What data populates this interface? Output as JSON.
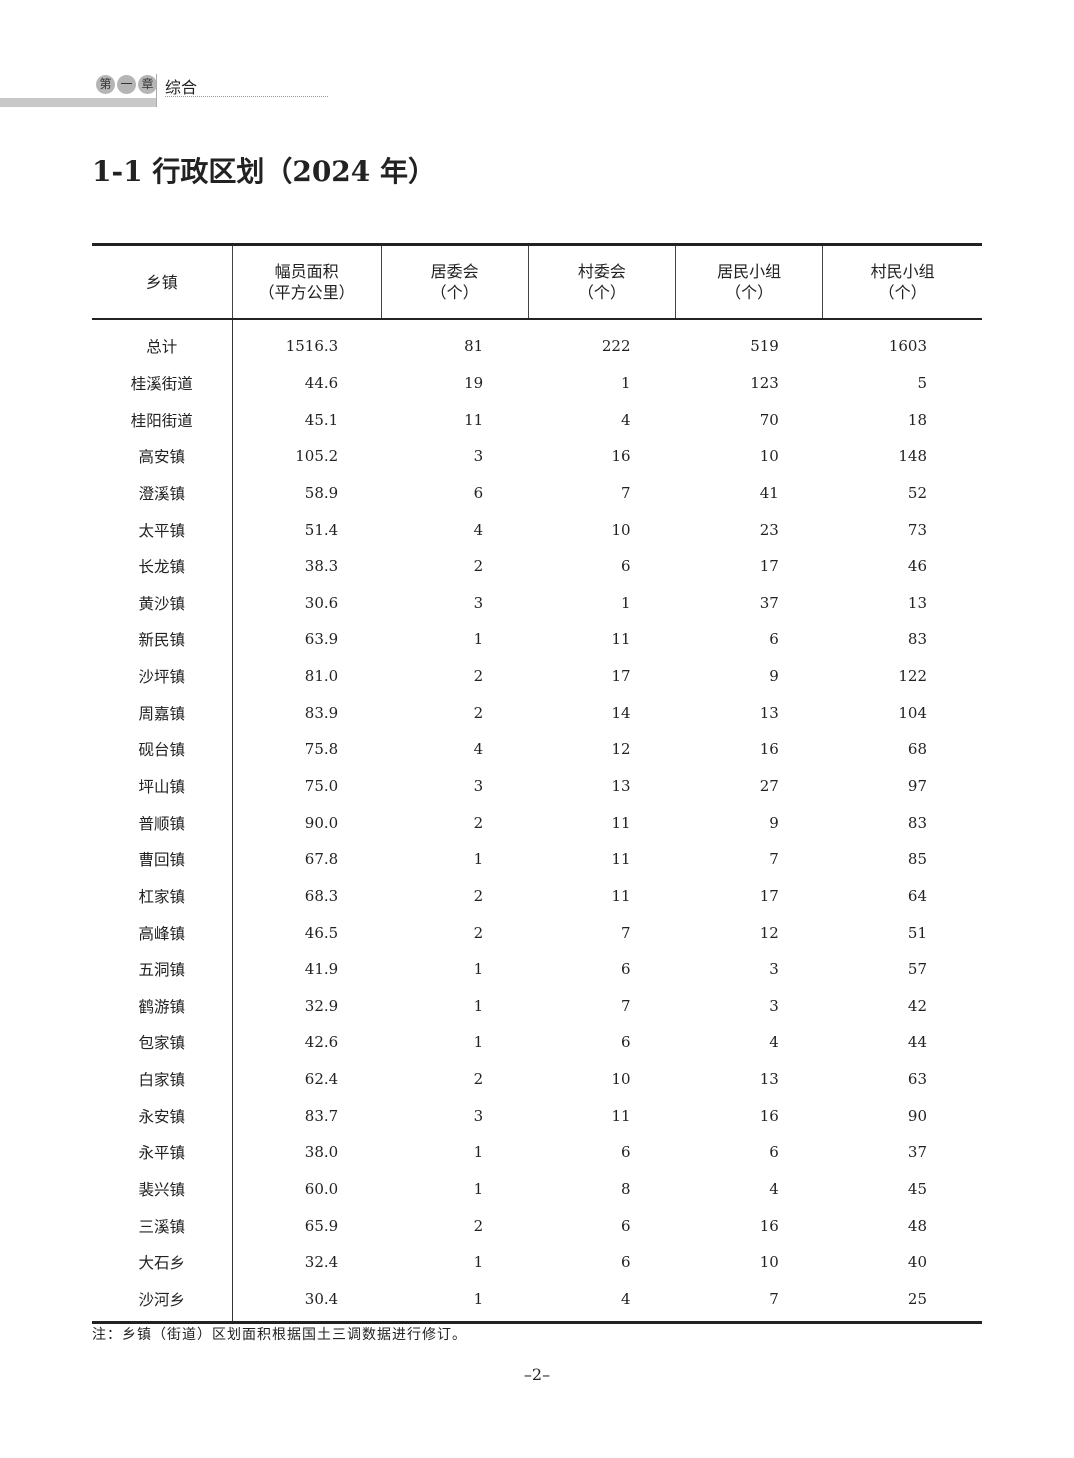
{
  "header": {
    "chapter": [
      "第",
      "一",
      "章"
    ],
    "section": "综合"
  },
  "title": "1-1  行政区划（2024 年）",
  "table": {
    "columns": [
      [
        "乡镇",
        ""
      ],
      [
        "幅员面积",
        "（平方公里）"
      ],
      [
        "居委会",
        "（个）"
      ],
      [
        "村委会",
        "（个）"
      ],
      [
        "居民小组",
        "（个）"
      ],
      [
        "村民小组",
        "（个）"
      ]
    ],
    "rows": [
      [
        "总计",
        "1516.3",
        "81",
        "222",
        "519",
        "1603"
      ],
      [
        "桂溪街道",
        "44.6",
        "19",
        "1",
        "123",
        "5"
      ],
      [
        "桂阳街道",
        "45.1",
        "11",
        "4",
        "70",
        "18"
      ],
      [
        "高安镇",
        "105.2",
        "3",
        "16",
        "10",
        "148"
      ],
      [
        "澄溪镇",
        "58.9",
        "6",
        "7",
        "41",
        "52"
      ],
      [
        "太平镇",
        "51.4",
        "4",
        "10",
        "23",
        "73"
      ],
      [
        "长龙镇",
        "38.3",
        "2",
        "6",
        "17",
        "46"
      ],
      [
        "黄沙镇",
        "30.6",
        "3",
        "1",
        "37",
        "13"
      ],
      [
        "新民镇",
        "63.9",
        "1",
        "11",
        "6",
        "83"
      ],
      [
        "沙坪镇",
        "81.0",
        "2",
        "17",
        "9",
        "122"
      ],
      [
        "周嘉镇",
        "83.9",
        "2",
        "14",
        "13",
        "104"
      ],
      [
        "砚台镇",
        "75.8",
        "4",
        "12",
        "16",
        "68"
      ],
      [
        "坪山镇",
        "75.0",
        "3",
        "13",
        "27",
        "97"
      ],
      [
        "普顺镇",
        "90.0",
        "2",
        "11",
        "9",
        "83"
      ],
      [
        "曹回镇",
        "67.8",
        "1",
        "11",
        "7",
        "85"
      ],
      [
        "杠家镇",
        "68.3",
        "2",
        "11",
        "17",
        "64"
      ],
      [
        "高峰镇",
        "46.5",
        "2",
        "7",
        "12",
        "51"
      ],
      [
        "五洞镇",
        "41.9",
        "1",
        "6",
        "3",
        "57"
      ],
      [
        "鹤游镇",
        "32.9",
        "1",
        "7",
        "3",
        "42"
      ],
      [
        "包家镇",
        "42.6",
        "1",
        "6",
        "4",
        "44"
      ],
      [
        "白家镇",
        "62.4",
        "2",
        "10",
        "13",
        "63"
      ],
      [
        "永安镇",
        "83.7",
        "3",
        "11",
        "16",
        "90"
      ],
      [
        "永平镇",
        "38.0",
        "1",
        "6",
        "6",
        "37"
      ],
      [
        "裴兴镇",
        "60.0",
        "1",
        "8",
        "4",
        "45"
      ],
      [
        "三溪镇",
        "65.9",
        "2",
        "6",
        "16",
        "48"
      ],
      [
        "大石乡",
        "32.4",
        "1",
        "6",
        "10",
        "40"
      ],
      [
        "沙河乡",
        "30.4",
        "1",
        "4",
        "7",
        "25"
      ]
    ]
  },
  "note": "注：乡镇（街道）区划面积根据国土三调数据进行修订。",
  "page_number": "–2–"
}
